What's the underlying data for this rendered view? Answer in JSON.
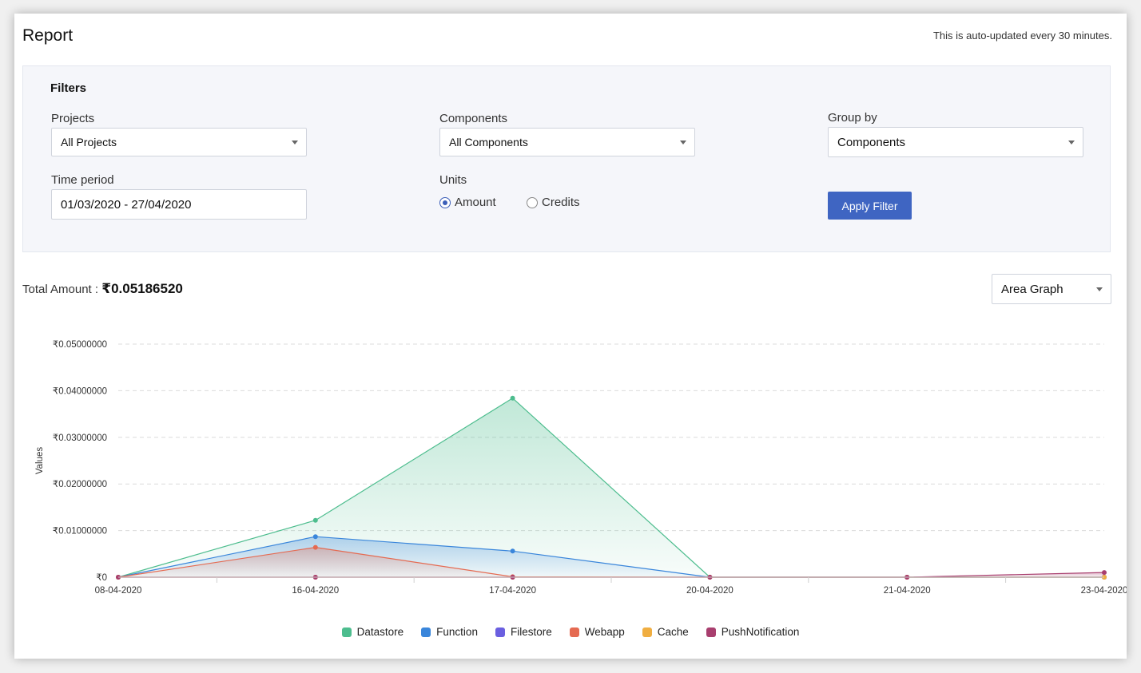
{
  "header": {
    "title": "Report",
    "note": "This is auto-updated every 30 minutes."
  },
  "filters": {
    "heading": "Filters",
    "projects": {
      "label": "Projects",
      "value": "All Projects"
    },
    "components": {
      "label": "Components",
      "value": "All Components"
    },
    "group_by": {
      "label": "Group by",
      "value": "Components"
    },
    "time_period": {
      "label": "Time period",
      "value": "01/03/2020 - 27/04/2020"
    },
    "units": {
      "label": "Units",
      "options": [
        {
          "label": "Amount",
          "selected": true
        },
        {
          "label": "Credits",
          "selected": false
        }
      ]
    },
    "apply_label": "Apply Filter"
  },
  "summary": {
    "total_label": "Total Amount : ",
    "total_value": "₹0.05186520",
    "graph_type": "Area Graph"
  },
  "chart_data": {
    "type": "area",
    "ylabel": "Values",
    "xlabel": "",
    "x": [
      "08-04-2020",
      "16-04-2020",
      "17-04-2020",
      "20-04-2020",
      "21-04-2020",
      "23-04-2020"
    ],
    "ylim": [
      0,
      0.05
    ],
    "yticks": [
      0,
      0.01,
      0.02,
      0.03,
      0.04,
      0.05
    ],
    "ytick_labels": [
      "₹0",
      "₹0.01000000",
      "₹0.02000000",
      "₹0.03000000",
      "₹0.04000000",
      "₹0.05000000"
    ],
    "grid": true,
    "legend_position": "bottom",
    "series": [
      {
        "name": "Datastore",
        "color": "#4dbd8e",
        "values": [
          0,
          0.0122,
          0.0384,
          0,
          0,
          0
        ]
      },
      {
        "name": "Function",
        "color": "#3a86db",
        "values": [
          0,
          0.0087,
          0.0056,
          0,
          0,
          0
        ]
      },
      {
        "name": "Filestore",
        "color": "#6a5fe0",
        "values": [
          0,
          0,
          0,
          0,
          0,
          0
        ]
      },
      {
        "name": "Webapp",
        "color": "#e56a51",
        "values": [
          0,
          0.0064,
          0.0001,
          0,
          0,
          0
        ]
      },
      {
        "name": "Cache",
        "color": "#f0ae41",
        "values": [
          0,
          0,
          0,
          0,
          0,
          0
        ]
      },
      {
        "name": "PushNotification",
        "color": "#a83e6e",
        "values": [
          0,
          0,
          0,
          0,
          0,
          0.001
        ]
      }
    ]
  }
}
